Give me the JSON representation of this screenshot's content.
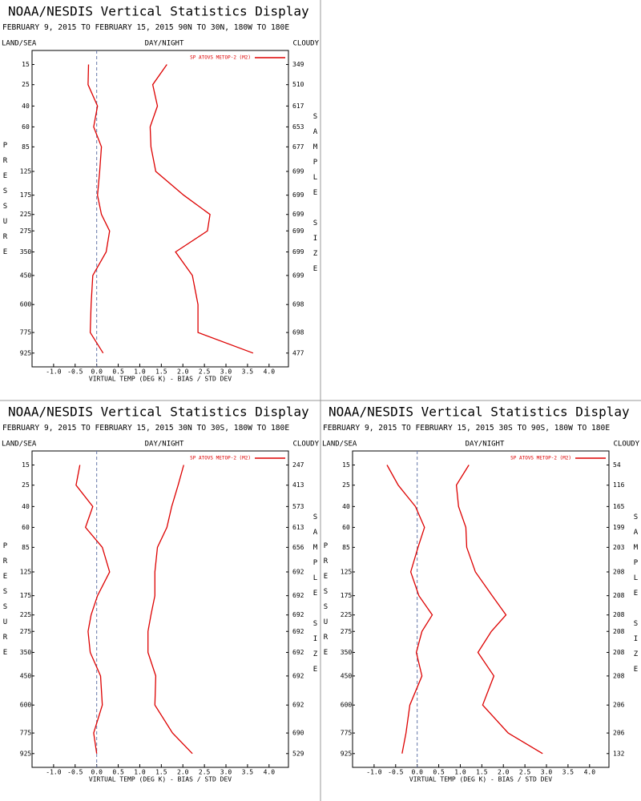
{
  "chart_data": [
    {
      "type": "line",
      "title": "NOAA/NESDIS Vertical Statistics Display",
      "subtitle": "FEBRUARY 9, 2015 TO FEBRUARY 15, 2015 90N TO 30N, 180W TO 180E",
      "land_sea_label": "LAND/SEA",
      "day_night_label": "DAY/NIGHT",
      "cloudy_label": "CLOUDY",
      "ylabel": "PRESSURE",
      "y2label": "SAMPLE SIZE",
      "xlabel": "VIRTUAL TEMP (DEG K) - BIAS / STD DEV",
      "yscale": "power",
      "yexponent": 0.286,
      "invert_y": true,
      "ylim": [
        10,
        1050
      ],
      "yticks": [
        15,
        25,
        40,
        60,
        85,
        125,
        175,
        225,
        275,
        350,
        450,
        600,
        775,
        925
      ],
      "xlim": [
        -1.5,
        4.45
      ],
      "xticks": [
        {
          "value": -1.0,
          "label": "-1.0"
        },
        -0.5,
        {
          "value": 0,
          "label": "0.0"
        },
        0.5,
        {
          "value": 1,
          "label": "1.0"
        },
        1.5,
        {
          "value": 2,
          "label": "2.0"
        },
        2.5,
        {
          "value": 3,
          "label": "3.0"
        },
        3.5,
        {
          "value": 4,
          "label": "4.0"
        }
      ],
      "sample_size": [
        349,
        510,
        617,
        653,
        677,
        699,
        699,
        699,
        699,
        699,
        699,
        698,
        698,
        477
      ],
      "series": [
        {
          "name": "SP ATOVS METOP-2 (M2)",
          "color": "#dd0000",
          "values": [
            -0.19,
            -0.2,
            0.02,
            -0.07,
            0.11,
            0.07,
            0.02,
            0.11,
            0.3,
            0.22,
            -0.09,
            -0.13,
            -0.15,
            0.15
          ],
          "std_dev": [
            1.63,
            1.3,
            1.41,
            1.24,
            1.26,
            1.37,
            2.02,
            2.63,
            2.57,
            1.83,
            2.22,
            2.35,
            2.35,
            3.63
          ]
        }
      ]
    },
    {
      "type": "line",
      "title": "NOAA/NESDIS Vertical Statistics Display",
      "subtitle": "FEBRUARY 9, 2015 TO FEBRUARY 15, 2015 30N TO 30S, 180W TO 180E",
      "land_sea_label": "LAND/SEA",
      "day_night_label": "DAY/NIGHT",
      "cloudy_label": "CLOUDY",
      "ylabel": "PRESSURE",
      "y2label": "SAMPLE SIZE",
      "xlabel": "VIRTUAL TEMP (DEG K) - BIAS / STD DEV",
      "yscale": "power",
      "yexponent": 0.286,
      "invert_y": true,
      "ylim": [
        10,
        1050
      ],
      "yticks": [
        15,
        25,
        40,
        60,
        85,
        125,
        175,
        225,
        275,
        350,
        450,
        600,
        775,
        925
      ],
      "xlim": [
        -1.5,
        4.45
      ],
      "xticks": [
        {
          "value": -1.0,
          "label": "-1.0"
        },
        -0.5,
        {
          "value": 0,
          "label": "0.0"
        },
        0.5,
        {
          "value": 1,
          "label": "1.0"
        },
        1.5,
        {
          "value": 2,
          "label": "2.0"
        },
        2.5,
        {
          "value": 3,
          "label": "3.0"
        },
        3.5,
        {
          "value": 4,
          "label": "4.0"
        }
      ],
      "sample_size": [
        247,
        413,
        573,
        613,
        656,
        692,
        692,
        692,
        692,
        692,
        692,
        692,
        690,
        529
      ],
      "series": [
        {
          "name": "SP ATOVS METOP-2 (M2)",
          "color": "#dd0000",
          "values": [
            -0.39,
            -0.48,
            -0.09,
            -0.26,
            0.13,
            0.3,
            0.02,
            -0.13,
            -0.2,
            -0.15,
            0.09,
            0.13,
            -0.07,
            0.0
          ],
          "std_dev": [
            2.02,
            1.89,
            1.74,
            1.63,
            1.41,
            1.35,
            1.35,
            1.26,
            1.19,
            1.19,
            1.37,
            1.35,
            1.76,
            2.22
          ]
        }
      ]
    },
    {
      "type": "line",
      "title": "NOAA/NESDIS Vertical Statistics Display",
      "subtitle": "FEBRUARY 9, 2015 TO FEBRUARY 15, 2015 30S TO 90S, 180W TO 180E",
      "land_sea_label": "LAND/SEA",
      "day_night_label": "DAY/NIGHT",
      "cloudy_label": "CLOUDY",
      "ylabel": "PRESSURE",
      "y2label": "SAMPLE SIZE",
      "xlabel": "VIRTUAL TEMP (DEG K) - BIAS / STD DEV",
      "yscale": "power",
      "yexponent": 0.286,
      "invert_y": true,
      "ylim": [
        10,
        1050
      ],
      "yticks": [
        15,
        25,
        40,
        60,
        85,
        125,
        175,
        225,
        275,
        350,
        450,
        600,
        775,
        925
      ],
      "xlim": [
        -1.5,
        4.45
      ],
      "xticks": [
        {
          "value": -1.0,
          "label": "-1.0"
        },
        -0.5,
        {
          "value": 0,
          "label": "0.0"
        },
        0.5,
        {
          "value": 1,
          "label": "1.0"
        },
        1.5,
        {
          "value": 2,
          "label": "2.0"
        },
        2.5,
        {
          "value": 3,
          "label": "3.0"
        },
        3.5,
        {
          "value": 4,
          "label": "4.0"
        }
      ],
      "sample_size": [
        54,
        116,
        165,
        199,
        203,
        208,
        208,
        208,
        208,
        208,
        208,
        206,
        206,
        132
      ],
      "series": [
        {
          "name": "SP ATOVS METOP-2 (M2)",
          "color": "#dd0000",
          "values": [
            -0.7,
            -0.44,
            -0.04,
            0.17,
            0.02,
            -0.15,
            0.04,
            0.35,
            0.11,
            -0.02,
            0.11,
            -0.17,
            -0.26,
            -0.35
          ],
          "std_dev": [
            1.2,
            0.91,
            0.96,
            1.13,
            1.15,
            1.35,
            1.74,
            2.06,
            1.72,
            1.41,
            1.78,
            1.52,
            2.11,
            2.91
          ]
        }
      ]
    }
  ]
}
